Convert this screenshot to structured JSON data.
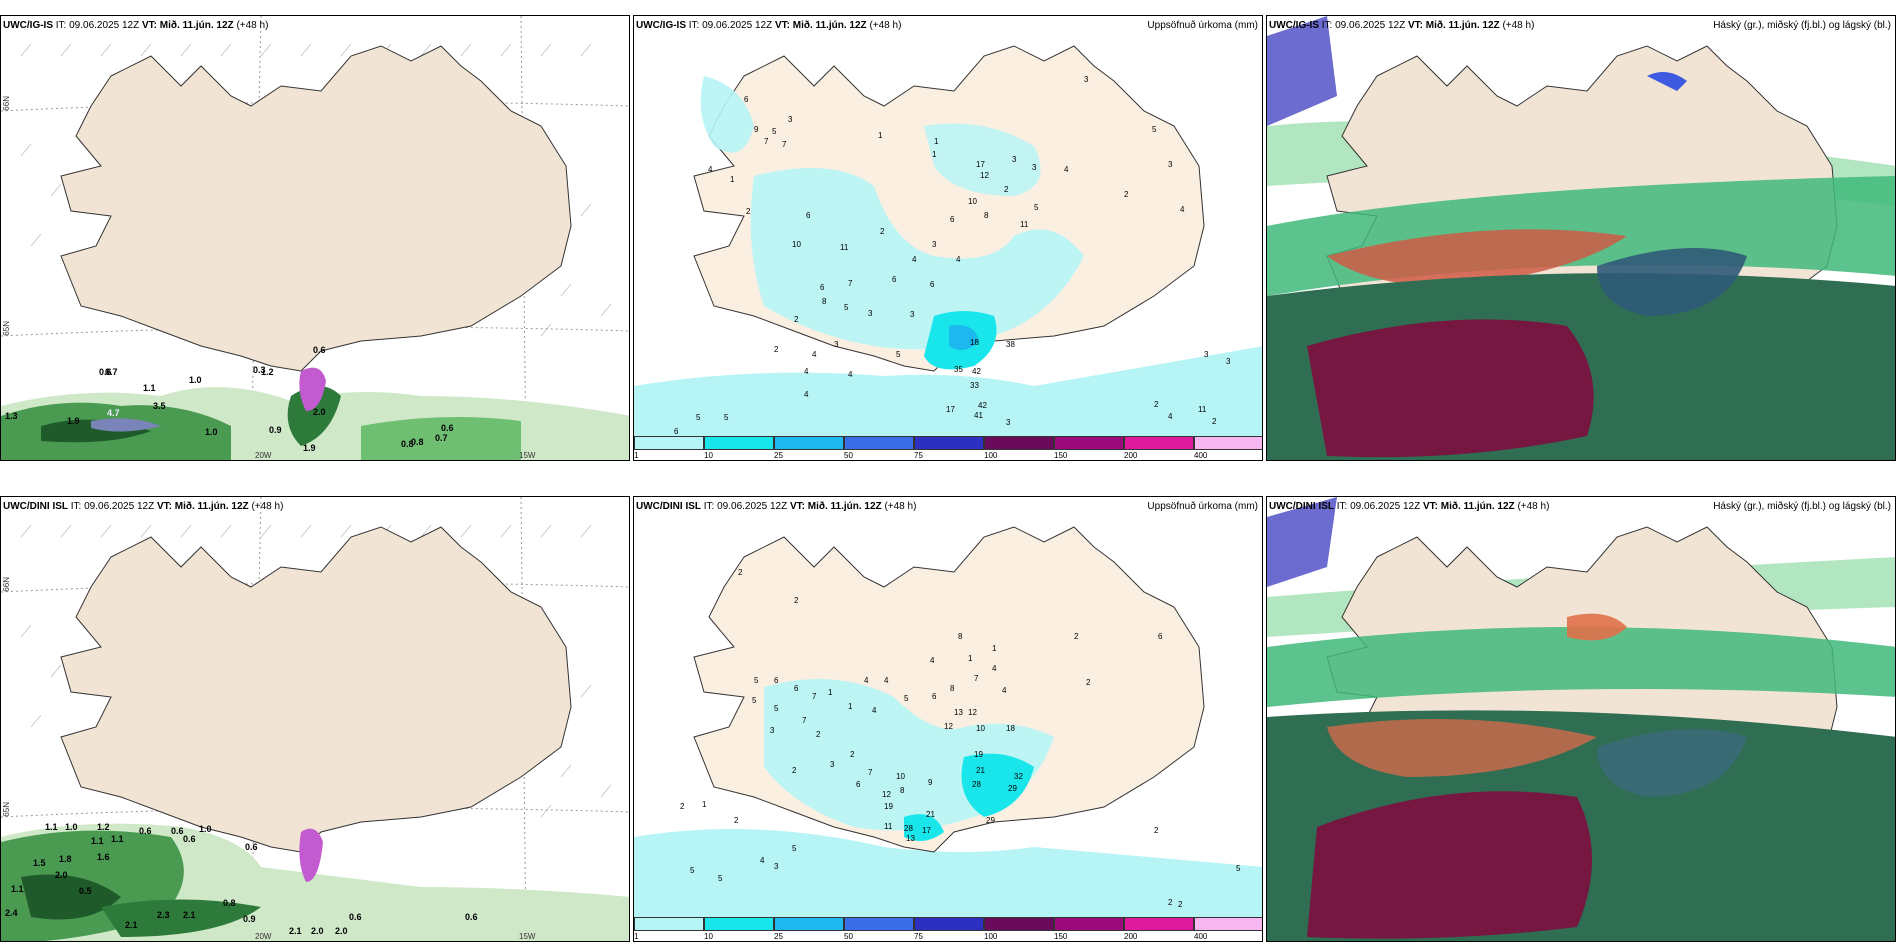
{
  "panels": {
    "p1": {
      "model": "UWC/IG-IS",
      "it_label": "IT:",
      "it_value": "09.06.2025 12Z",
      "vt_label": "VT: Mið. 11.jún. 12Z",
      "lead": "(+48 h)",
      "title_right": "",
      "values": [
        "0.6",
        "0.7",
        "0.3",
        "1.0",
        "1.1",
        "1.2",
        "4.7",
        "3.5",
        "1.9",
        "1.3",
        "1.0",
        "0.9",
        "1.9",
        "0.8",
        "0.7",
        "0.6",
        "0.8",
        "2.0",
        "0.6"
      ],
      "lon_labels": [
        "20W",
        "15W"
      ],
      "lat_labels": [
        "66N",
        "65N"
      ]
    },
    "p2": {
      "model": "UWC/IG-IS",
      "it_label": "IT:",
      "it_value": "09.06.2025 12Z",
      "vt_label": "VT: Mið. 11.jún. 12Z",
      "lead": "(+48 h)",
      "title_right": "Uppsöfnuð úrkoma (mm)",
      "values": [
        "6",
        "4",
        "9",
        "7",
        "5",
        "7",
        "3",
        "2",
        "1",
        "1",
        "17",
        "12",
        "3",
        "3",
        "2",
        "4",
        "5",
        "10",
        "6",
        "8",
        "11",
        "2",
        "6",
        "10",
        "11",
        "3",
        "4",
        "6",
        "7",
        "6",
        "8",
        "5",
        "3",
        "2",
        "3",
        "6",
        "4",
        "2",
        "4",
        "3",
        "4",
        "5",
        "18",
        "35",
        "42",
        "33",
        "38",
        "17",
        "42",
        "41",
        "3",
        "4",
        "5",
        "5",
        "6",
        "4",
        "3",
        "3",
        "3",
        "2",
        "11",
        "2",
        "4",
        "2",
        "1",
        "1",
        "5",
        "3",
        "4"
      ]
    },
    "p3": {
      "model": "UWC/IG-IS",
      "it_label": "IT:",
      "it_value": "09.06.2025 12Z",
      "vt_label": "VT: Mið. 11.jún. 12Z",
      "lead": "(+48 h)",
      "title_right": "Háský (gr.), miðský (fj.bl.) og lágský (bl.)"
    },
    "p4": {
      "model": "UWC/DINI ISL",
      "it_label": "IT:",
      "it_value": "09.06.2025 12Z",
      "vt_label": "VT: Mið. 11.jún. 12Z",
      "lead": "(+48 h)",
      "title_right": "",
      "values": [
        "1.1",
        "1.0",
        "1.2",
        "1.1",
        "0.6",
        "0.6",
        "1.0",
        "0.6",
        "0.6",
        "1.8",
        "1.5",
        "2.0",
        "1.1",
        "1.6",
        "0.5",
        "1.1",
        "2.4",
        "2.3",
        "2.1",
        "2.1",
        "0.8",
        "0.9",
        "2.1",
        "2.0",
        "2.0",
        "0.6",
        "0.6"
      ],
      "lon_labels": [
        "20W",
        "15W"
      ],
      "lat_labels": [
        "66N",
        "65N"
      ]
    },
    "p5": {
      "model": "UWC/DINI ISL",
      "it_label": "IT:",
      "it_value": "09.06.2025 12Z",
      "vt_label": "VT: Mið. 11.jún. 12Z",
      "lead": "(+48 h)",
      "title_right": "Uppsöfnuð úrkoma (mm)",
      "values": [
        "2",
        "2",
        "1",
        "5",
        "6",
        "6",
        "5",
        "7",
        "4",
        "5",
        "3",
        "7",
        "2",
        "1",
        "4",
        "2",
        "4",
        "5",
        "8",
        "4",
        "1",
        "1",
        "4",
        "4",
        "7",
        "8",
        "6",
        "13",
        "12",
        "12",
        "10",
        "18",
        "19",
        "21",
        "32",
        "29",
        "28",
        "17",
        "28",
        "21",
        "13",
        "29",
        "9",
        "10",
        "12",
        "19",
        "11",
        "8",
        "7",
        "6",
        "3",
        "2",
        "2",
        "1",
        "5",
        "5",
        "4",
        "3",
        "2",
        "5",
        "5",
        "2",
        "2",
        "2",
        "2",
        "6",
        "2"
      ]
    },
    "p6": {
      "model": "UWC/DINI ISL",
      "it_label": "IT:",
      "it_value": "09.06.2025 12Z",
      "vt_label": "VT: Mið. 11.jún. 12Z",
      "lead": "(+48 h)",
      "title_right": "Háský (gr.), miðský (fj.bl.) og lágský (bl.)"
    }
  },
  "colorbar": {
    "ticks": [
      "1",
      "10",
      "25",
      "50",
      "75",
      "100",
      "150",
      "200",
      "400"
    ],
    "colors": [
      "#b6f4f6",
      "#18e6ea",
      "#1cb8ee",
      "#3a6ee8",
      "#2d2fc0",
      "#6a0a5a",
      "#9a0a7a",
      "#e01a9c",
      "#f6b6f0"
    ]
  }
}
